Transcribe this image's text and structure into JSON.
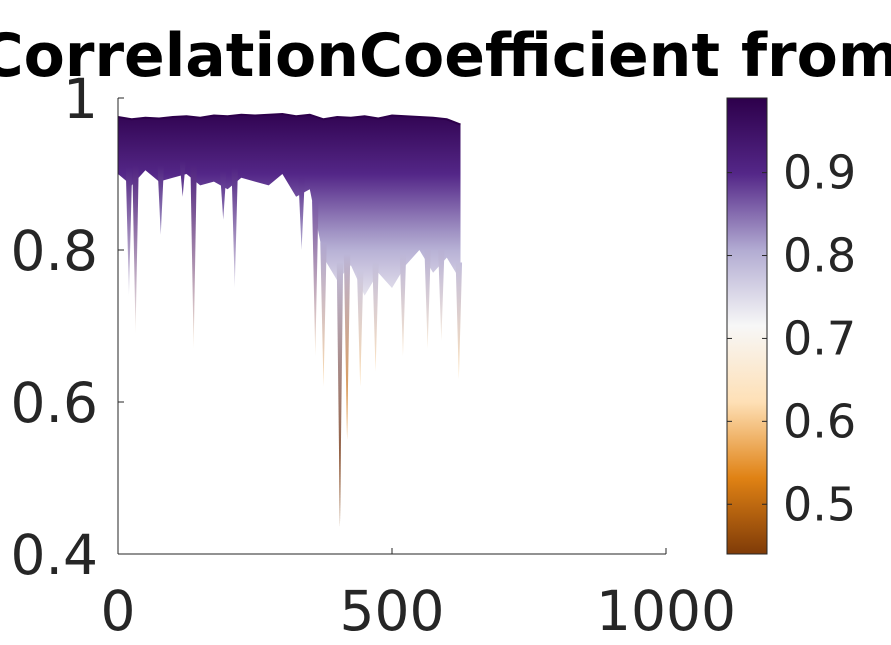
{
  "chart_data": {
    "type": "area",
    "title": "CorrelationCoefficient from",
    "xlabel": "",
    "ylabel": "",
    "xlim": [
      0,
      1000
    ],
    "ylim": [
      0.4,
      1
    ],
    "x_ticks": [
      "0",
      "500",
      "1000"
    ],
    "y_ticks": [
      "0.4",
      "0.6",
      "0.8",
      "1"
    ],
    "x_tick_values": [
      0,
      500,
      1000
    ],
    "y_tick_values": [
      0.4,
      0.6,
      0.8,
      1
    ],
    "grid": false,
    "colorbar": {
      "range": [
        0.44,
        0.99
      ],
      "ticks": [
        "0.5",
        "0.6",
        "0.7",
        "0.8",
        "0.9"
      ],
      "tick_values": [
        0.5,
        0.6,
        0.7,
        0.8,
        0.9
      ],
      "colors": [
        "#7f3b08",
        "#e08214",
        "#fee0b6",
        "#f7f7f7",
        "#b2abd2",
        "#542788",
        "#2d004b"
      ]
    },
    "series": [
      {
        "x_range": [
          0,
          625
        ],
        "upper_envelope": {
          "x": [
            0,
            25,
            50,
            75,
            100,
            125,
            150,
            175,
            200,
            225,
            250,
            275,
            300,
            325,
            350,
            375,
            400,
            425,
            450,
            475,
            500,
            525,
            550,
            575,
            600,
            625
          ],
          "y": [
            0.975,
            0.972,
            0.974,
            0.973,
            0.975,
            0.976,
            0.974,
            0.977,
            0.976,
            0.978,
            0.977,
            0.978,
            0.979,
            0.976,
            0.978,
            0.972,
            0.975,
            0.974,
            0.976,
            0.973,
            0.977,
            0.976,
            0.975,
            0.974,
            0.972,
            0.965
          ]
        },
        "typical_lower": {
          "x": [
            0,
            25,
            50,
            75,
            100,
            125,
            150,
            175,
            200,
            225,
            250,
            275,
            300,
            325,
            350,
            375,
            400,
            425,
            450,
            475,
            500,
            525,
            550,
            575,
            600,
            625
          ],
          "y": [
            0.9,
            0.885,
            0.905,
            0.89,
            0.895,
            0.9,
            0.885,
            0.89,
            0.88,
            0.895,
            0.89,
            0.885,
            0.9,
            0.87,
            0.88,
            0.79,
            0.76,
            0.78,
            0.74,
            0.77,
            0.75,
            0.78,
            0.8,
            0.77,
            0.79,
            0.76
          ]
        },
        "spikes": [
          {
            "x": 20,
            "y": 0.74
          },
          {
            "x": 32,
            "y": 0.69
          },
          {
            "x": 78,
            "y": 0.82
          },
          {
            "x": 118,
            "y": 0.87
          },
          {
            "x": 138,
            "y": 0.67
          },
          {
            "x": 192,
            "y": 0.84
          },
          {
            "x": 213,
            "y": 0.75
          },
          {
            "x": 335,
            "y": 0.8
          },
          {
            "x": 360,
            "y": 0.66
          },
          {
            "x": 375,
            "y": 0.62
          },
          {
            "x": 405,
            "y": 0.435
          },
          {
            "x": 418,
            "y": 0.55
          },
          {
            "x": 442,
            "y": 0.62
          },
          {
            "x": 470,
            "y": 0.64
          },
          {
            "x": 520,
            "y": 0.66
          },
          {
            "x": 565,
            "y": 0.67
          },
          {
            "x": 590,
            "y": 0.68
          },
          {
            "x": 622,
            "y": 0.63
          }
        ]
      }
    ]
  }
}
